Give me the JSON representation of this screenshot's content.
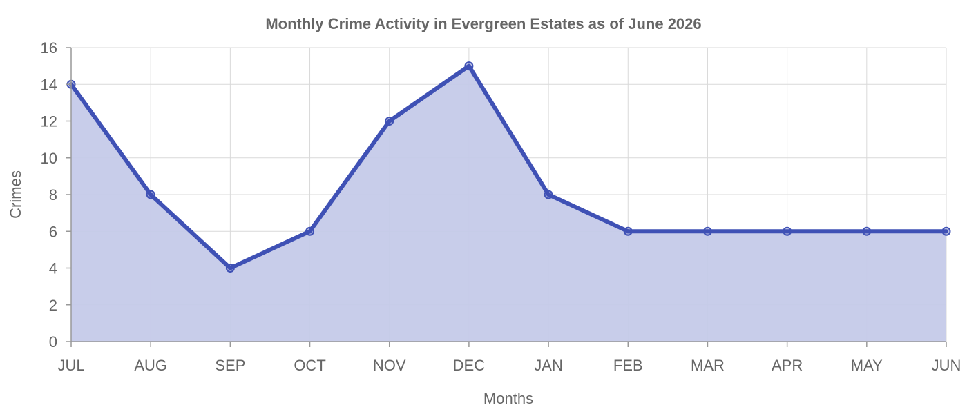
{
  "chart_data": {
    "type": "area",
    "title": "Monthly Crime Activity in Evergreen Estates as of June 2026",
    "xlabel": "Months",
    "ylabel": "Crimes",
    "categories": [
      "JUL",
      "AUG",
      "SEP",
      "OCT",
      "NOV",
      "DEC",
      "JAN",
      "FEB",
      "MAR",
      "APR",
      "MAY",
      "JUN"
    ],
    "series": [
      {
        "values": [
          14,
          8,
          4,
          6,
          12,
          15,
          8,
          6,
          6,
          6,
          6,
          6
        ],
        "line_color": "#3f51b5",
        "fill_color": "#c5cae9"
      }
    ],
    "ylim": [
      0,
      16
    ],
    "yticks": [
      0,
      2,
      4,
      6,
      8,
      10,
      12,
      14,
      16
    ],
    "grid": true,
    "legend": "none"
  }
}
